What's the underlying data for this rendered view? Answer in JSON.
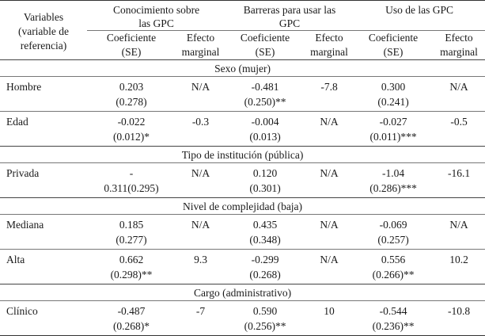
{
  "header": {
    "variables": [
      "Variables",
      "(variable de",
      "referencia)"
    ],
    "groups": [
      {
        "title_lines": [
          "Conocimiento sobre",
          "las GPC"
        ]
      },
      {
        "title_lines": [
          "Barreras para usar las",
          "GPC"
        ]
      },
      {
        "title_lines": [
          "Uso de las GPC"
        ]
      }
    ],
    "coef": [
      "Coeficiente",
      "(SE)"
    ],
    "efecto": [
      "Efecto",
      "marginal"
    ]
  },
  "sections": [
    {
      "title": "Sexo (mujer)",
      "rows": [
        {
          "label": "Hombre",
          "cells": [
            {
              "coef": "0.203",
              "se": "(0.278)"
            },
            {
              "eff": "N/A"
            },
            {
              "coef": "-0.481",
              "se": "(0.250)**"
            },
            {
              "eff": "-7.8"
            },
            {
              "coef": "0.300",
              "se": "(0.241)"
            },
            {
              "eff": "N/A"
            }
          ]
        },
        {
          "label": "Edad",
          "cells": [
            {
              "coef": "-0.022",
              "se": "(0.012)*"
            },
            {
              "eff": "-0.3"
            },
            {
              "coef": "-0.004",
              "se": "(0.013)"
            },
            {
              "eff": "N/A"
            },
            {
              "coef": "-0.027",
              "se": "(0.011)***"
            },
            {
              "eff": "-0.5"
            }
          ]
        }
      ]
    },
    {
      "title": "Tipo de institución (pública)",
      "rows": [
        {
          "label": "Privada",
          "cells": [
            {
              "coef": "-",
              "se": "0.311(0.295)"
            },
            {
              "eff": "N/A"
            },
            {
              "coef": "0.120",
              "se": "(0.301)"
            },
            {
              "eff": "N/A"
            },
            {
              "coef": "-1.04",
              "se": "(0.286)***"
            },
            {
              "eff": "-16.1"
            }
          ]
        }
      ]
    },
    {
      "title": "Nivel de complejidad (baja)",
      "rows": [
        {
          "label": "Mediana",
          "cells": [
            {
              "coef": "0.185",
              "se": "(0.277)"
            },
            {
              "eff": "N/A"
            },
            {
              "coef": "0.435",
              "se": "(0.348)"
            },
            {
              "eff": "N/A"
            },
            {
              "coef": "-0.069",
              "se": "(0.257)"
            },
            {
              "eff": "N/A"
            }
          ]
        },
        {
          "label": "Alta",
          "cells": [
            {
              "coef": "0.662",
              "se": "(0.298)**"
            },
            {
              "eff": "9.3"
            },
            {
              "coef": "-0.299",
              "se": "(0.268)"
            },
            {
              "eff": "N/A"
            },
            {
              "coef": "0.556",
              "se": "(0.266)**"
            },
            {
              "eff": "10.2"
            }
          ]
        }
      ]
    },
    {
      "title": "Cargo (administrativo)",
      "rows": [
        {
          "label": "Clínico",
          "cells": [
            {
              "coef": "-0.487",
              "se": "(0.268)*"
            },
            {
              "eff": "-7"
            },
            {
              "coef": "0.590",
              "se": "(0.256)**"
            },
            {
              "eff": "10"
            },
            {
              "coef": "-0.544",
              "se": "(0.236)**"
            },
            {
              "eff": "-10.8"
            }
          ]
        }
      ]
    }
  ]
}
